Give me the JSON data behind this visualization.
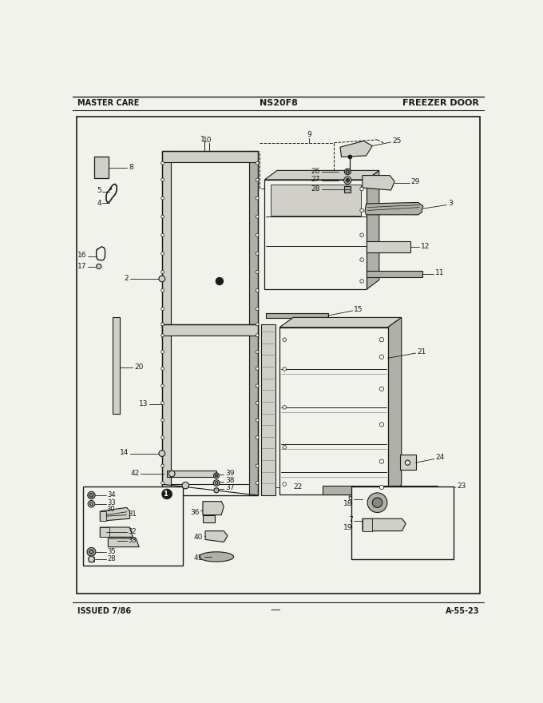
{
  "title_center": "NS20F8",
  "title_left": "MASTER CARE",
  "title_right": "FREEZER DOOR",
  "footer_left": "ISSUED 7/86",
  "footer_right": "A-55-23",
  "bg_color": "#f5f5f0",
  "line_color": "#1a1a1a",
  "fig_width": 6.8,
  "fig_height": 8.8
}
